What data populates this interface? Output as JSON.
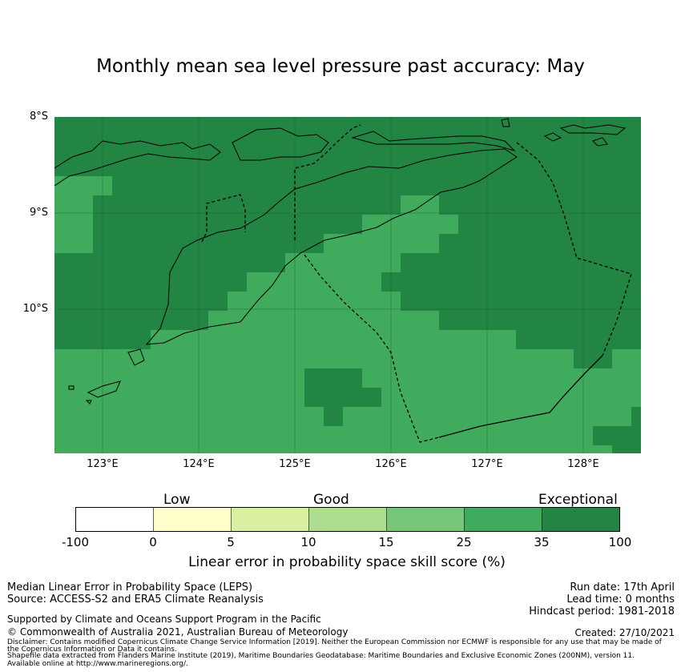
{
  "title": "Monthly mean sea level pressure past accuracy: May",
  "map": {
    "lat_labels": [
      "8°S",
      "9°S",
      "10°S"
    ],
    "lon_labels": [
      "123°E",
      "124°E",
      "125°E",
      "126°E",
      "127°E",
      "128°E"
    ],
    "colors": {
      "exceptional": "#238543",
      "very_good": "#41ab5d",
      "coast": "#000000"
    }
  },
  "colorbar": {
    "categories": [
      "Low",
      "Good",
      "Exceptional"
    ],
    "ticks": [
      "-100",
      "0",
      "5",
      "10",
      "15",
      "25",
      "35",
      "100"
    ],
    "colors": [
      "#ffffff",
      "#ffffcc",
      "#d9f0a3",
      "#addd8e",
      "#78c679",
      "#41ab5d",
      "#238443"
    ],
    "label": "Linear error in probability space skill score (%)"
  },
  "footer": {
    "method": "Median Linear Error in Probability Space (LEPS)",
    "source": "Source: ACCESS-S2 and ERA5 Climate Reanalysis",
    "support": "Supported by Climate and Oceans Support Program in the Pacific",
    "copyright": "© Commonwealth of Australia 2021, Australian Bureau of Meteorology",
    "run_date": "Run date: 17th April",
    "lead_time": "Lead time: 0 months",
    "hindcast": "Hindcast period: 1981-2018",
    "created": "Created: 27/10/2021",
    "disclaimer1": "Disclaimer: Contains modified Copernicus Climate Change Service Information [2019]. Neither the European Commission nor ECMWF is responsible for any use that may be made of",
    "disclaimer2": "the Copernicus Information or Data it contains.",
    "disclaimer3": "Shapefile data extracted from Flanders Marine Institute (2019), Maritime Boundaries Geodatabase: Maritime Boundaries and Exclusive Economic Zones (200NM), version 11.",
    "disclaimer4": "Available online at http://www.marineregions.org/."
  }
}
